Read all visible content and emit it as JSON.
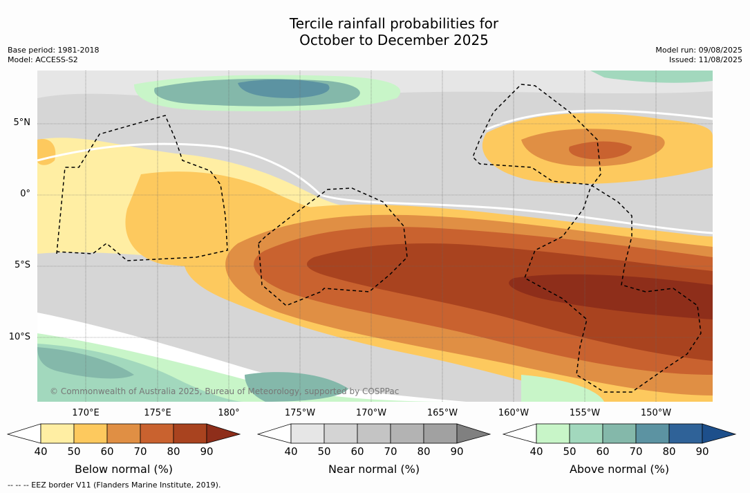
{
  "title_line1": "Tercile rainfall probabilities for",
  "title_line2": "October to December 2025",
  "meta_left": {
    "base_period": "Base period: 1981-2018",
    "model": "Model: ACCESS-S2"
  },
  "meta_right": {
    "model_run": "Model run: 09/08/2025",
    "issued": "Issued: 11/08/2025"
  },
  "lat_labels": [
    "5°N",
    "0°",
    "5°S",
    "10°S"
  ],
  "lon_labels": [
    "170°E",
    "175°E",
    "180°",
    "175°W",
    "170°W",
    "165°W",
    "160°W",
    "155°W",
    "150°W"
  ],
  "copyright": "© Commonwealth of Australia 2025, Bureau of Meteorology, supported by COSPPac",
  "footnote": "-- -- -- EEZ border V11 (Flanders Marine Institute, 2019).",
  "colorbars": [
    {
      "label": "Below normal (%)",
      "ticks": [
        "40",
        "50",
        "60",
        "70",
        "80",
        "90"
      ],
      "colors": [
        "#ffffff",
        "#ffeea3",
        "#fdc95e",
        "#e08f44",
        "#c9622f",
        "#a9431f",
        "#8e2e1a"
      ]
    },
    {
      "label": "Near normal (%)",
      "ticks": [
        "40",
        "50",
        "60",
        "70",
        "80",
        "90"
      ],
      "colors": [
        "#ffffff",
        "#e6e6e6",
        "#d4d4d4",
        "#c4c4c4",
        "#b3b3b3",
        "#a1a1a1",
        "#808080"
      ]
    },
    {
      "label": "Above normal (%)",
      "ticks": [
        "40",
        "50",
        "60",
        "70",
        "80",
        "90"
      ],
      "colors": [
        "#ffffff",
        "#c8f5c8",
        "#a2d8bd",
        "#84b8aa",
        "#5c93a2",
        "#2f6298",
        "#1d4f8b"
      ]
    }
  ]
}
